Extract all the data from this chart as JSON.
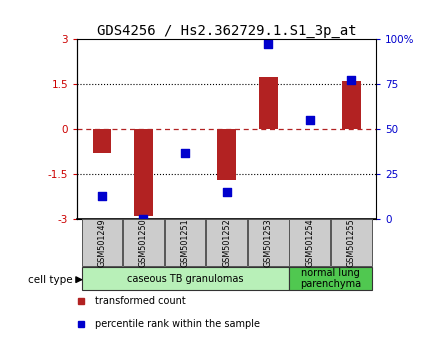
{
  "title": "GDS4256 / Hs2.362729.1.S1_3p_at",
  "samples": [
    "GSM501249",
    "GSM501250",
    "GSM501251",
    "GSM501252",
    "GSM501253",
    "GSM501254",
    "GSM501255"
  ],
  "transformed_count": [
    -0.8,
    -2.9,
    0.02,
    -1.7,
    1.75,
    0.02,
    1.6
  ],
  "percentile_rank": [
    13,
    0,
    37,
    15,
    97,
    55,
    77
  ],
  "ylim_left": [
    -3,
    3
  ],
  "ylim_right": [
    0,
    100
  ],
  "yticks_left": [
    -3,
    -1.5,
    0,
    1.5,
    3
  ],
  "ytick_labels_left": [
    "-3",
    "-1.5",
    "0",
    "1.5",
    "3"
  ],
  "yticks_right": [
    0,
    25,
    50,
    75,
    100
  ],
  "ytick_labels_right": [
    "0",
    "25",
    "50",
    "75",
    "100%"
  ],
  "bar_color": "#B22222",
  "dot_color": "#0000CD",
  "bar_width": 0.45,
  "dot_size": 40,
  "cell_types": [
    {
      "label": "caseous TB granulomas",
      "samples": [
        0,
        1,
        2,
        3,
        4
      ],
      "color": "#b8f0b8"
    },
    {
      "label": "normal lung\nparenchyma",
      "samples": [
        5,
        6
      ],
      "color": "#50c850"
    }
  ],
  "cell_type_label": "cell type",
  "legend_items": [
    {
      "label": "transformed count",
      "color": "#B22222"
    },
    {
      "label": "percentile rank within the sample",
      "color": "#0000CD"
    }
  ],
  "title_fontsize": 10,
  "tick_fontsize": 7.5,
  "bg_color": "#ffffff",
  "axis_label_color_left": "#CC0000",
  "axis_label_color_right": "#0000CD"
}
